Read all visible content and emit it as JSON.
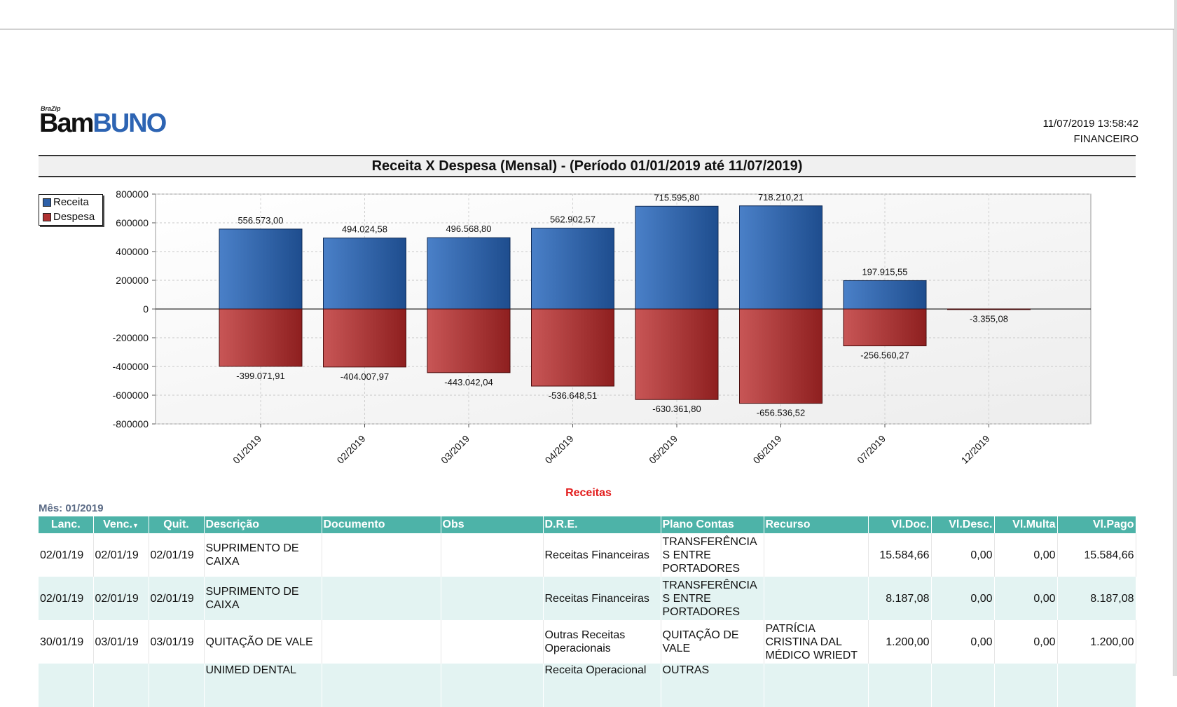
{
  "header": {
    "logo_small": "BraZip",
    "logo_part1": "Bam",
    "logo_part2": "BUNO",
    "datetime": "11/07/2019 13:58:42",
    "department": "FINANCEIRO"
  },
  "report_title": "Receita X Despesa (Mensal) - (Período 01/01/2019 até 11/07/2019)",
  "legend": {
    "receita": "Receita",
    "despesa": "Despesa"
  },
  "colors": {
    "receita": "#2e60a8",
    "despesa": "#b03232",
    "table_header": "#4db3a8",
    "section_title": "#e21b1b"
  },
  "chart_data": {
    "type": "bar",
    "categories": [
      "01/2019",
      "02/2019",
      "03/2019",
      "04/2019",
      "05/2019",
      "06/2019",
      "07/2019",
      "12/2019"
    ],
    "series": [
      {
        "name": "Receita",
        "values": [
          556573.0,
          494024.58,
          496568.8,
          562902.57,
          715595.8,
          718210.21,
          197915.55,
          null
        ],
        "labels": [
          "556.573,00",
          "494.024,58",
          "496.568,80",
          "562.902,57",
          "715.595,80",
          "718.210,21",
          "197.915,55",
          ""
        ]
      },
      {
        "name": "Despesa",
        "values": [
          -399071.91,
          -404007.97,
          -443042.04,
          -536648.51,
          -630361.8,
          -656536.52,
          -256560.27,
          -3355.08
        ],
        "labels": [
          "-399.071,91",
          "-404.007,97",
          "-443.042,04",
          "-536.648,51",
          "-630.361,80",
          "-656.536,52",
          "-256.560,27",
          "-3.355,08"
        ]
      }
    ],
    "yticks": [
      "800000",
      "600000",
      "400000",
      "200000",
      "0",
      "-200000",
      "-400000",
      "-600000",
      "-800000"
    ],
    "ylim": [
      -800000,
      800000
    ],
    "grid": true,
    "legend_position": "top-left"
  },
  "section_title": "Receitas",
  "month_label": "Mês: 01/2019",
  "table": {
    "columns": [
      "Lanc.",
      "Venc.",
      "Quit.",
      "Descrição",
      "Documento",
      "Obs",
      "D.R.E.",
      "Plano Contas",
      "Recurso",
      "Vl.Doc.",
      "Vl.Desc.",
      "Vl.Multa",
      "Vl.Pago"
    ],
    "sort_indicator": "▼",
    "rows": [
      {
        "lanc": "02/01/19",
        "venc": "02/01/19",
        "quit": "02/01/19",
        "descricao": "SUPRIMENTO DE CAIXA",
        "documento": "",
        "obs": "",
        "dre": "Receitas Financeiras",
        "plano": "TRANSFERÊNCIA S ENTRE PORTADORES",
        "recurso": "",
        "vldoc": "15.584,66",
        "vldesc": "0,00",
        "vlmulta": "0,00",
        "vlpago": "15.584,66"
      },
      {
        "lanc": "02/01/19",
        "venc": "02/01/19",
        "quit": "02/01/19",
        "descricao": "SUPRIMENTO DE CAIXA",
        "documento": "",
        "obs": "",
        "dre": "Receitas Financeiras",
        "plano": "TRANSFERÊNCIA S ENTRE PORTADORES",
        "recurso": "",
        "vldoc": "8.187,08",
        "vldesc": "0,00",
        "vlmulta": "0,00",
        "vlpago": "8.187,08"
      },
      {
        "lanc": "30/01/19",
        "venc": "03/01/19",
        "quit": "03/01/19",
        "descricao": "QUITAÇÃO DE VALE",
        "documento": "",
        "obs": "",
        "dre": "Outras Receitas Operacionais",
        "plano": "QUITAÇÃO DE VALE",
        "recurso": "PATRÍCIA CRISTINA DAL MÉDICO WRIEDT",
        "vldoc": "1.200,00",
        "vldesc": "0,00",
        "vlmulta": "0,00",
        "vlpago": "1.200,00"
      },
      {
        "lanc": "",
        "venc": "",
        "quit": "",
        "descricao": "UNIMED DENTAL",
        "documento": "",
        "obs": "",
        "dre": "Receita Operacional",
        "plano": "OUTRAS",
        "recurso": "",
        "vldoc": "",
        "vldesc": "",
        "vlmulta": "",
        "vlpago": ""
      }
    ]
  }
}
